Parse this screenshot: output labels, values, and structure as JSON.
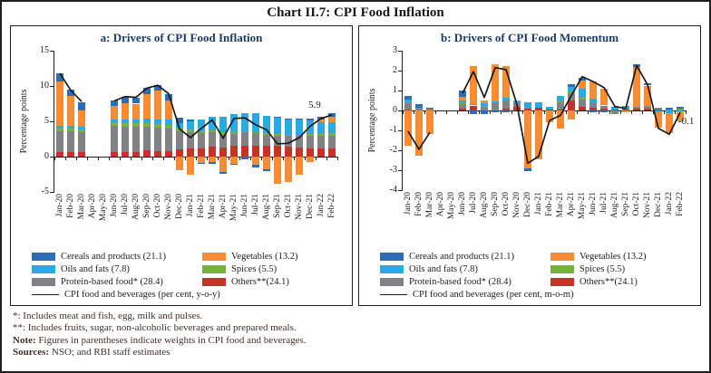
{
  "title": "Chart II.7: CPI Food Inflation",
  "colors": {
    "cereals": "#2B6DB6",
    "vegetables": "#F68C33",
    "oils_and_fats": "#29ABE2",
    "spices": "#77B143",
    "protein_based_food": "#808285",
    "others": "#C53227",
    "line": "#1A1A1A",
    "panel_title": "#1C3C67",
    "notes_text": "#43302B"
  },
  "chart_data": [
    {
      "type": "bar",
      "stacked": true,
      "title": "a: Drivers of CPI Food Inflation",
      "xlabel": "",
      "ylabel": "Percentage points",
      "ylim": [
        -5,
        15
      ],
      "yticks": [
        15,
        10,
        5,
        0,
        -5
      ],
      "grid": false,
      "legend_position": "bottom",
      "categories": [
        "Jan-20",
        "Feb-20",
        "Mar-20",
        "Apr-20",
        "May-20",
        "Jun-20",
        "Jul-20",
        "Aug-20",
        "Sep-20",
        "Oct-20",
        "Nov-20",
        "Dec-20",
        "Jan-21",
        "Feb-21",
        "Mar-21",
        "Apr-21",
        "May-21",
        "Jun-21",
        "Jul-21",
        "Aug-21",
        "Sep-21",
        "Oct-21",
        "Nov-21",
        "Dec-21",
        "Jan-22",
        "Feb-22"
      ],
      "series": [
        {
          "key": "others",
          "name": "Others**(24.1)",
          "color": "#C53227",
          "values": [
            0.7,
            0.7,
            0.7,
            null,
            null,
            0.6,
            0.7,
            0.7,
            0.9,
            0.8,
            0.8,
            1.0,
            1.2,
            1.2,
            1.4,
            1.3,
            1.5,
            1.6,
            1.6,
            1.5,
            1.5,
            1.4,
            1.3,
            1.2,
            1.1,
            1.1
          ]
        },
        {
          "key": "protein",
          "name": "Protein-based food* (28.4)",
          "color": "#808285",
          "values": [
            2.9,
            2.9,
            2.7,
            null,
            null,
            3.7,
            3.5,
            3.5,
            3.3,
            3.3,
            3.2,
            2.6,
            2.2,
            2.1,
            2.0,
            1.8,
            1.7,
            1.8,
            1.7,
            1.6,
            1.5,
            1.5,
            1.6,
            1.7,
            1.8,
            1.9
          ]
        },
        {
          "key": "spices",
          "name": "Spices (5.5)",
          "color": "#77B143",
          "values": [
            0.4,
            0.4,
            0.4,
            null,
            null,
            0.5,
            0.5,
            0.5,
            0.5,
            0.5,
            0.5,
            0.4,
            0.4,
            0.3,
            0.3,
            0.3,
            0.3,
            0.2,
            0.2,
            0.2,
            0.2,
            0.2,
            0.2,
            0.3,
            0.3,
            0.3
          ]
        },
        {
          "key": "oils",
          "name": "Oils and fats (7.8)",
          "color": "#29ABE2",
          "values": [
            0.3,
            0.3,
            0.4,
            null,
            null,
            0.5,
            0.6,
            0.6,
            0.7,
            0.7,
            0.7,
            0.8,
            1.2,
            1.6,
            2.0,
            2.2,
            2.5,
            2.5,
            2.6,
            2.5,
            2.3,
            2.2,
            2.1,
            1.9,
            1.7,
            1.6
          ]
        },
        {
          "key": "vegetables",
          "name": "Vegetables (13.2)",
          "color": "#F68C33",
          "values": [
            6.3,
            4.3,
            2.4,
            null,
            null,
            1.9,
            2.3,
            2.2,
            3.5,
            4.0,
            2.8,
            -1.9,
            -2.6,
            -0.9,
            -0.8,
            -2.2,
            -1.0,
            0.0,
            -1.2,
            -1.8,
            -3.9,
            -3.6,
            -2.6,
            -0.8,
            0.4,
            0.7
          ]
        },
        {
          "key": "cereals",
          "name": "Cereals and products (21.1)",
          "color": "#2B6DB6",
          "values": [
            1.2,
            0.9,
            1.1,
            null,
            null,
            0.8,
            0.9,
            0.8,
            0.8,
            0.8,
            0.8,
            0.7,
            0.3,
            -0.1,
            -0.2,
            -0.3,
            -0.1,
            -0.4,
            -0.3,
            -0.2,
            0.1,
            0.1,
            0.2,
            0.3,
            0.4,
            0.5
          ]
        }
      ],
      "line_series": {
        "name": "CPI food and beverages (per cent, y-o-y)",
        "color": "#1A1A1A",
        "end_label": "5.9",
        "values": [
          11.8,
          9.4,
          7.8,
          null,
          null,
          7.9,
          8.5,
          8.4,
          9.7,
          10.1,
          8.9,
          3.9,
          2.7,
          4.0,
          5.2,
          2.6,
          5.4,
          5.5,
          4.5,
          3.8,
          1.8,
          1.9,
          2.7,
          4.3,
          5.4,
          5.9
        ]
      },
      "legend": [
        {
          "label": "Cereals and products (21.1)",
          "color": "#2B6DB6",
          "type": "box"
        },
        {
          "label": "Vegetables (13.2)",
          "color": "#F68C33",
          "type": "box"
        },
        {
          "label": "Oils and fats (7.8)",
          "color": "#29ABE2",
          "type": "box"
        },
        {
          "label": "Spices (5.5)",
          "color": "#77B143",
          "type": "box"
        },
        {
          "label": "Protein-based food* (28.4)",
          "color": "#808285",
          "type": "box"
        },
        {
          "label": "Others**(24.1)",
          "color": "#C53227",
          "type": "box"
        },
        {
          "label": "CPI food and beverages (per cent, y-o-y)",
          "color": "#1A1A1A",
          "type": "line"
        }
      ]
    },
    {
      "type": "bar",
      "stacked": true,
      "title": "b: Drivers of CPI Food Momentum",
      "xlabel": "",
      "ylabel": "Percentage points",
      "ylim": [
        -4,
        3
      ],
      "yticks": [
        3,
        2,
        1,
        0,
        -1,
        -2,
        -3,
        -4
      ],
      "grid": false,
      "legend_position": "bottom",
      "categories": [
        "Jan-20",
        "Feb-20",
        "Mar-20",
        "Apr-20",
        "May-20",
        "Jun-20",
        "Jul-20",
        "Aug-20",
        "Sep-20",
        "Oct-20",
        "Nov-20",
        "Dec-20",
        "Jan-21",
        "Feb-21",
        "Mar-21",
        "Apr-21",
        "May-21",
        "Jun-21",
        "Jul-21",
        "Aug-21",
        "Sep-21",
        "Oct-21",
        "Nov-21",
        "Dec-21",
        "Jan-22",
        "Feb-22"
      ],
      "series": [
        {
          "key": "others",
          "name": "Others**(24.1)",
          "color": "#C53227",
          "values": [
            0.05,
            0,
            0,
            null,
            null,
            0.1,
            0.25,
            0,
            0,
            0.1,
            0.2,
            0.1,
            0.15,
            0.05,
            0.05,
            0.5,
            0.2,
            0.15,
            0.1,
            0.05,
            0.05,
            0.1,
            0.1,
            0.05,
            0,
            0
          ]
        },
        {
          "key": "protein",
          "name": "Protein-based food* (28.4)",
          "color": "#808285",
          "values": [
            0.3,
            0.1,
            0.1,
            null,
            null,
            0.2,
            0,
            0.2,
            0.35,
            0.4,
            0.15,
            0,
            0,
            0,
            0.35,
            0.35,
            0.35,
            0.2,
            0.15,
            -0.2,
            0.1,
            0.1,
            0.1,
            0.1,
            0.05,
            0.05
          ]
        },
        {
          "key": "spices",
          "name": "Spices (5.5)",
          "color": "#77B143",
          "values": [
            0.08,
            0,
            0,
            null,
            null,
            0.05,
            0,
            0.03,
            0,
            0,
            0,
            0,
            0,
            0,
            0.05,
            0.05,
            0.1,
            0,
            0,
            0,
            0,
            0,
            0,
            0,
            0,
            0.05
          ]
        },
        {
          "key": "oils",
          "name": "Oils and fats (7.8)",
          "color": "#29ABE2",
          "values": [
            0.12,
            0.05,
            0,
            null,
            null,
            0.15,
            0.05,
            0.15,
            0.1,
            0.15,
            0.1,
            0.3,
            0.25,
            0.15,
            0.3,
            0.3,
            0.45,
            0.25,
            0,
            0.1,
            0.1,
            0,
            0.05,
            -0.1,
            -0.15,
            -0.05
          ]
        },
        {
          "key": "vegetables",
          "name": "Vegetables (13.2)",
          "color": "#F68C33",
          "values": [
            -1.75,
            -2.25,
            -1.2,
            null,
            null,
            0.2,
            1.95,
            0.1,
            1.85,
            1.6,
            0.05,
            -2.9,
            -2.45,
            -0.6,
            -0.9,
            -0.45,
            0.4,
            0.85,
            0.85,
            0,
            -0.1,
            2.0,
            1.0,
            -0.75,
            -1.0,
            -0.5
          ]
        },
        {
          "key": "cereals",
          "name": "Cereals and products (21.1)",
          "color": "#2B6DB6",
          "values": [
            0.2,
            0.15,
            0.05,
            null,
            null,
            0.3,
            -0.2,
            -0.2,
            -0.1,
            -0.1,
            0,
            -0.15,
            0,
            0,
            0,
            0.1,
            0.15,
            -0.1,
            -0.1,
            0.05,
            0,
            0.1,
            0.1,
            0,
            0.1,
            0.1
          ]
        }
      ],
      "line_series": {
        "name": "CPI food and beverages (per cent, m-o-m)",
        "color": "#1A1A1A",
        "end_label": "-0.1",
        "values": [
          -1.05,
          -1.95,
          -1.1,
          null,
          null,
          0.85,
          1.95,
          0.65,
          2.15,
          2.05,
          0.3,
          -2.65,
          -2.3,
          -0.5,
          -0.25,
          0.75,
          1.7,
          1.45,
          1.15,
          0.2,
          0.1,
          2.25,
          1.3,
          -0.9,
          -1.2,
          -0.1
        ]
      },
      "legend": [
        {
          "label": "Cereals and products (21.1)",
          "color": "#2B6DB6",
          "type": "box"
        },
        {
          "label": "Vegetables (13.2)",
          "color": "#F68C33",
          "type": "box"
        },
        {
          "label": "Oils and fats (7.8)",
          "color": "#29ABE2",
          "type": "box"
        },
        {
          "label": "Spices (5.5)",
          "color": "#77B143",
          "type": "box"
        },
        {
          "label": "Protein-based food* (28.4)",
          "color": "#808285",
          "type": "box"
        },
        {
          "label": "Others**(24.1)",
          "color": "#C53227",
          "type": "box"
        },
        {
          "label": "CPI food and beverages (per cent, m-o-m)",
          "color": "#1A1A1A",
          "type": "line"
        }
      ]
    }
  ],
  "notes": [
    {
      "bold": "",
      "text": "*: Includes meat and fish, egg, milk and pulses."
    },
    {
      "bold": "",
      "text": "**: Includes fruits, sugar, non-alcoholic beverages and prepared meals."
    },
    {
      "bold": "Note:",
      "text": " Figures in parentheses indicate weights in CPI food and beverages."
    },
    {
      "bold": "Sources:",
      "text": " NSO; and RBI staff estimates"
    }
  ]
}
